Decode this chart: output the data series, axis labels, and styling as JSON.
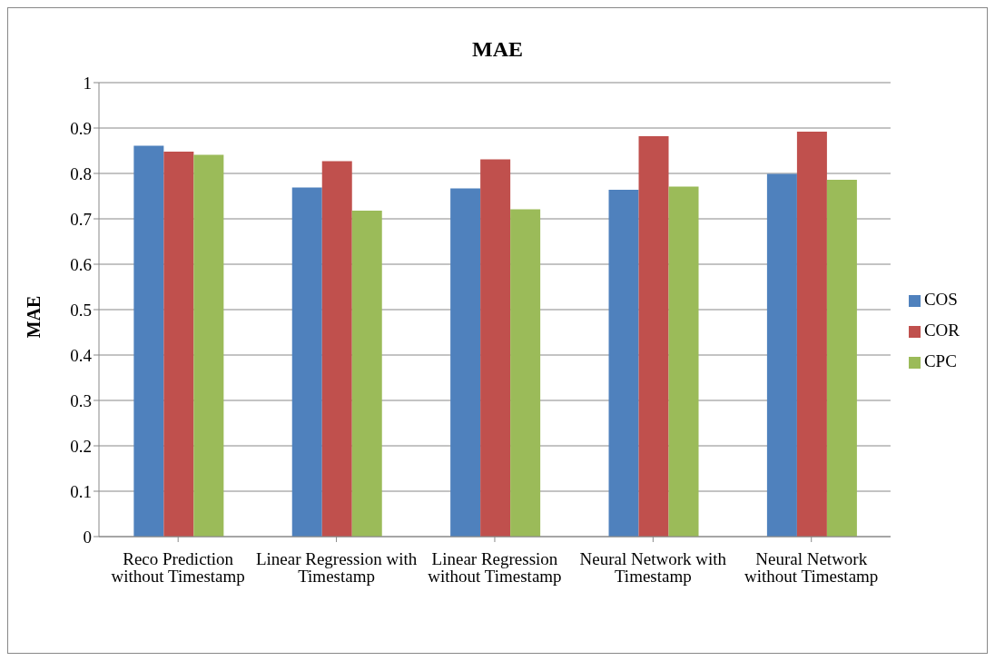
{
  "chart_data": {
    "type": "bar",
    "title": "MAE",
    "ylabel": "MAE",
    "categories": [
      "Reco Prediction without Timestamp",
      "Linear Regression with Timestamp",
      "Linear Regression without Timestamp",
      "Neural Network with Timestamp",
      "Neural Network without Timestamp"
    ],
    "series": [
      {
        "name": "COS",
        "color": "#4f81bd",
        "values": [
          0.861,
          0.769,
          0.767,
          0.764,
          0.799
        ]
      },
      {
        "name": "COR",
        "color": "#c0504d",
        "values": [
          0.848,
          0.827,
          0.831,
          0.882,
          0.892
        ]
      },
      {
        "name": "CPC",
        "color": "#9bbb59",
        "values": [
          0.841,
          0.718,
          0.721,
          0.771,
          0.786
        ]
      }
    ],
    "ylim": [
      0,
      1
    ],
    "yticks": [
      0,
      0.1,
      0.2,
      0.3,
      0.4,
      0.5,
      0.6,
      0.7,
      0.8,
      0.9,
      1
    ],
    "grid": "y",
    "legend": "right"
  }
}
